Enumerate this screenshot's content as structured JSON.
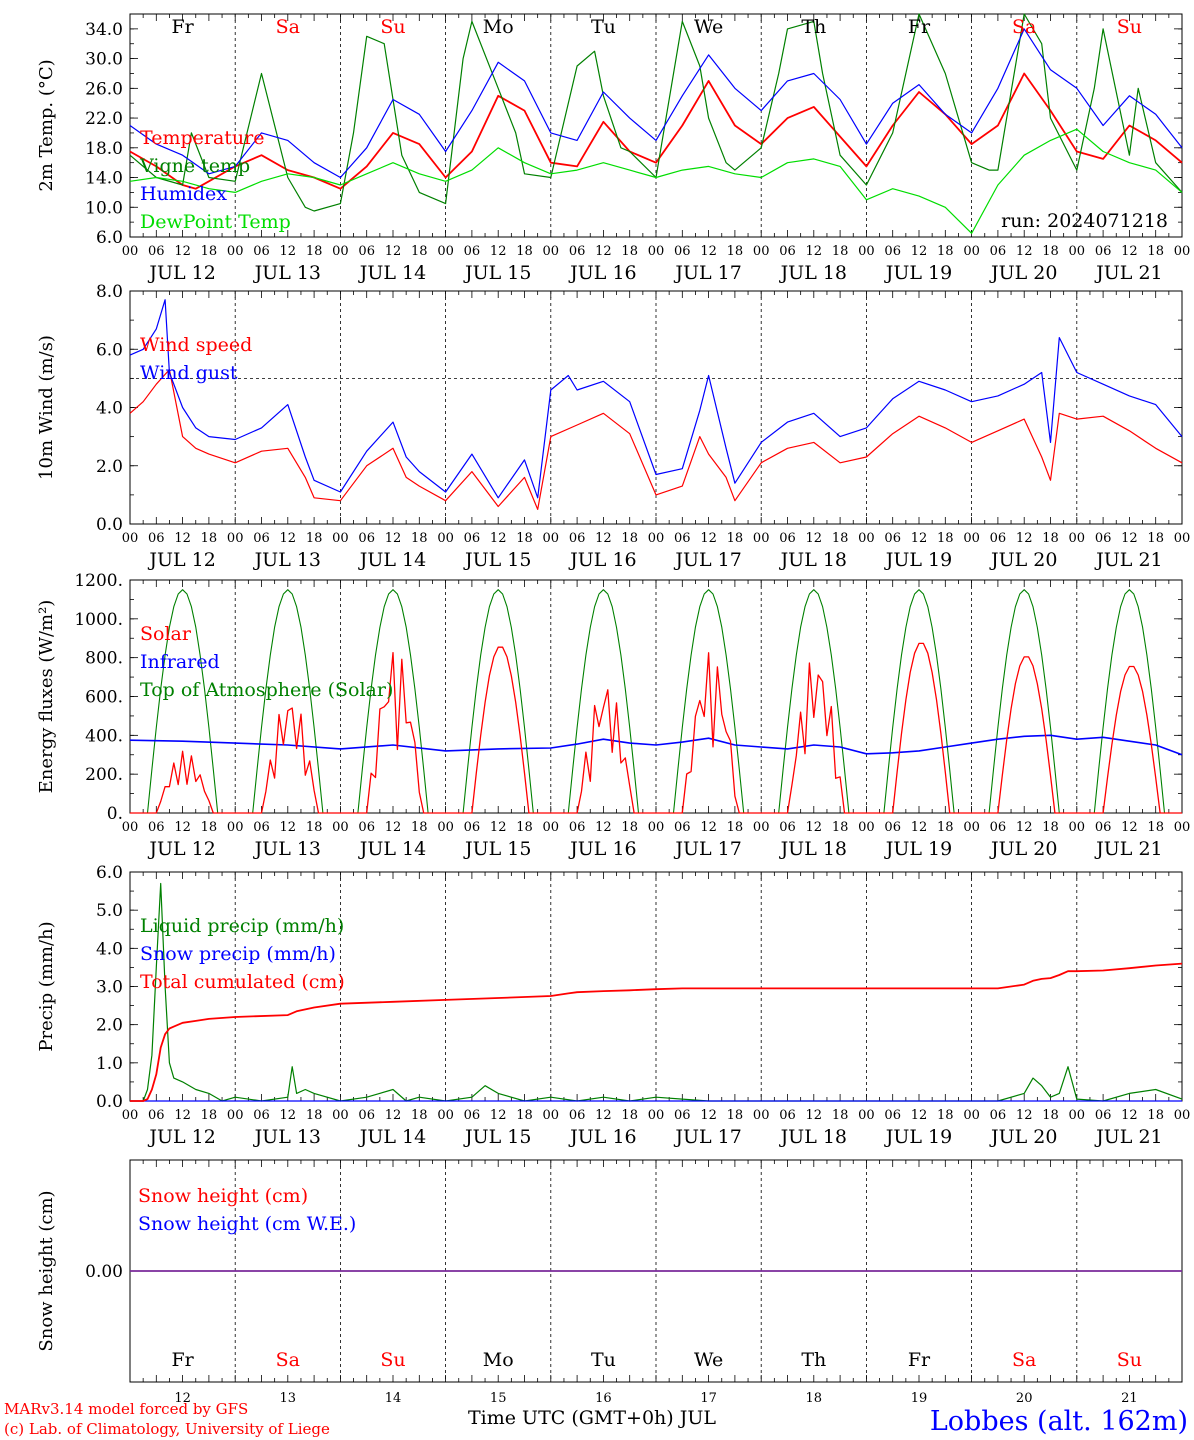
{
  "colors": {
    "temperature": "#ff0000",
    "vigne": "#008000",
    "humidex": "#0000ff",
    "dewpoint": "#00dd00",
    "wind_speed": "#ff0000",
    "wind_gust": "#0000ff",
    "solar": "#ff0000",
    "infrared": "#0000ff",
    "toa": "#008000",
    "liquid": "#008000",
    "snow_precip": "#0000ff",
    "cumulated": "#ff0000",
    "snow_height": "#ff0000",
    "snow_we": "#0000ff",
    "weekend": "#ff0000",
    "weekday": "#000000",
    "station": "#0000ff",
    "credits": "#ff0000"
  },
  "days": {
    "names": [
      "Fr",
      "Sa",
      "Su",
      "Mo",
      "Tu",
      "We",
      "Th",
      "Fr",
      "Sa",
      "Su"
    ],
    "weekend": [
      false,
      true,
      true,
      false,
      false,
      false,
      false,
      false,
      true,
      true
    ],
    "dates": [
      "JUL 12",
      "JUL 13",
      "JUL 14",
      "JUL 15",
      "JUL 16",
      "JUL 17",
      "JUL 18",
      "JUL 19",
      "JUL 20",
      "JUL 21"
    ],
    "numbers": [
      "12",
      "13",
      "14",
      "15",
      "16",
      "17",
      "18",
      "19",
      "20",
      "21"
    ],
    "hours": [
      "00",
      "06",
      "12",
      "18"
    ]
  },
  "run_label": "run: 2024071218",
  "footer": {
    "credit_1": "MARv3.14 model forced by GFS",
    "credit_2": "(c) Lab. of Climatology, University of Liege",
    "axis_title": "Time UTC (GMT+0h) JUL",
    "station": "Lobbes (alt. 162m)"
  },
  "chart_data": [
    {
      "type": "line",
      "ylabel": "2m Temp. (°C)",
      "ylim": [
        6,
        36
      ],
      "yticks": [
        "6.0",
        "10.0",
        "14.0",
        "18.0",
        "22.0",
        "26.0",
        "30.0",
        "34.0"
      ],
      "x_unit": "hours since JUL 12 00 UTC",
      "xlim": [
        0,
        240
      ],
      "legend": [
        "Temperature",
        "Vigne temp",
        "Humidex",
        "DewPoint Temp"
      ],
      "series": [
        {
          "name": "Temperature",
          "color_key": "temperature",
          "x": [
            0,
            6,
            12,
            15,
            18,
            24,
            30,
            36,
            42,
            48,
            54,
            60,
            66,
            72,
            78,
            84,
            90,
            96,
            102,
            108,
            114,
            120,
            126,
            132,
            138,
            144,
            150,
            156,
            162,
            168,
            174,
            180,
            186,
            192,
            198,
            204,
            210,
            216,
            222,
            228,
            234,
            240
          ],
          "y": [
            17.5,
            15.5,
            13,
            12.5,
            13.5,
            15.5,
            17,
            15,
            14,
            12.5,
            15.5,
            20,
            18.5,
            14,
            17.5,
            25,
            23,
            16,
            15.5,
            21.5,
            17.5,
            16,
            21,
            27,
            21,
            18.5,
            22,
            23.5,
            19.5,
            15.5,
            21,
            25.5,
            22.5,
            18.5,
            21,
            28,
            23,
            17.5,
            16.5,
            21,
            19,
            16
          ]
        },
        {
          "name": "Vigne temp",
          "color_key": "vigne",
          "x": [
            0,
            6,
            12,
            14,
            18,
            24,
            30,
            36,
            40,
            42,
            48,
            51,
            54,
            58,
            62,
            66,
            72,
            76,
            78,
            84,
            88,
            90,
            96,
            102,
            106,
            108,
            112,
            114,
            120,
            126,
            130,
            132,
            136,
            138,
            144,
            148,
            150,
            156,
            158,
            162,
            168,
            174,
            180,
            186,
            192,
            196,
            198,
            204,
            208,
            210,
            216,
            220,
            222,
            228,
            230,
            234,
            240
          ],
          "y": [
            17,
            14,
            13,
            20,
            14,
            13.5,
            28,
            14,
            10,
            9.5,
            10.5,
            20,
            33,
            32,
            17,
            12,
            10.5,
            30,
            35,
            26,
            20,
            14.5,
            14,
            29,
            31,
            25,
            18,
            17.5,
            14,
            35,
            29,
            22,
            16,
            15,
            18,
            28,
            34,
            35,
            28,
            17,
            13,
            20,
            36,
            28,
            16,
            15,
            15,
            36,
            32,
            22,
            15,
            26,
            34,
            17,
            26,
            16,
            12
          ]
        },
        {
          "name": "Humidex",
          "color_key": "humidex",
          "x": [
            0,
            6,
            12,
            18,
            24,
            30,
            36,
            42,
            48,
            54,
            60,
            66,
            72,
            78,
            84,
            90,
            96,
            102,
            108,
            114,
            120,
            126,
            132,
            138,
            144,
            150,
            156,
            162,
            168,
            174,
            180,
            186,
            192,
            198,
            204,
            210,
            216,
            222,
            228,
            234,
            240
          ],
          "y": [
            21,
            18.5,
            17,
            14.5,
            15.5,
            20,
            19,
            16,
            14,
            18,
            24.5,
            22.5,
            17.5,
            23,
            29.5,
            27,
            20,
            19,
            25.5,
            22,
            19,
            25,
            30.5,
            26,
            23,
            27,
            28,
            24.5,
            18.5,
            24,
            26.5,
            22.5,
            20,
            26,
            34,
            28.5,
            26,
            21,
            25,
            22.5,
            18
          ]
        },
        {
          "name": "DewPoint Temp",
          "color_key": "dewpoint",
          "x": [
            0,
            6,
            12,
            18,
            24,
            30,
            36,
            42,
            48,
            54,
            60,
            66,
            72,
            78,
            84,
            90,
            96,
            102,
            108,
            114,
            120,
            126,
            132,
            138,
            144,
            150,
            156,
            162,
            168,
            174,
            180,
            186,
            192,
            198,
            204,
            210,
            216,
            222,
            228,
            234,
            240
          ],
          "y": [
            13.5,
            14,
            13.5,
            12.5,
            12,
            13.5,
            14.5,
            14,
            13,
            14.5,
            16,
            14.5,
            13.5,
            15,
            18,
            16,
            14.5,
            15,
            16,
            15,
            14,
            15,
            15.5,
            14.5,
            14,
            16,
            16.5,
            15.5,
            11,
            12.5,
            11.5,
            10,
            6.5,
            13,
            17,
            19,
            20.5,
            17.5,
            16,
            15,
            12
          ]
        }
      ]
    },
    {
      "type": "line",
      "ylabel": "10m Wind (m/s)",
      "ylim": [
        0,
        8
      ],
      "yticks": [
        "0.0",
        "2.0",
        "4.0",
        "6.0",
        "8.0"
      ],
      "reference_line": 5,
      "xlim": [
        0,
        240
      ],
      "legend": [
        "Wind speed",
        "Wind gust"
      ],
      "series": [
        {
          "name": "Wind speed",
          "color_key": "wind_speed",
          "x": [
            0,
            3,
            6,
            9,
            12,
            15,
            18,
            24,
            30,
            36,
            40,
            42,
            48,
            54,
            60,
            63,
            66,
            72,
            78,
            84,
            90,
            93,
            96,
            102,
            108,
            114,
            120,
            126,
            130,
            132,
            136,
            138,
            144,
            150,
            156,
            162,
            168,
            174,
            180,
            186,
            192,
            198,
            204,
            208,
            210,
            212,
            216,
            222,
            228,
            234,
            240
          ],
          "y": [
            3.8,
            4.2,
            4.8,
            5.3,
            3,
            2.6,
            2.4,
            2.1,
            2.5,
            2.6,
            1.6,
            0.9,
            0.8,
            2,
            2.6,
            1.6,
            1.3,
            0.8,
            1.8,
            0.6,
            1.6,
            0.5,
            3,
            3.4,
            3.8,
            3.1,
            1,
            1.3,
            3,
            2.4,
            1.6,
            0.8,
            2.1,
            2.6,
            2.8,
            2.1,
            2.3,
            3.1,
            3.7,
            3.3,
            2.8,
            3.2,
            3.6,
            2.3,
            1.5,
            3.8,
            3.6,
            3.7,
            3.2,
            2.6,
            2.1
          ]
        },
        {
          "name": "Wind gust",
          "color_key": "wind_gust",
          "x": [
            0,
            3,
            6,
            8,
            9,
            12,
            15,
            18,
            24,
            30,
            36,
            40,
            42,
            48,
            54,
            60,
            63,
            66,
            72,
            78,
            84,
            90,
            93,
            96,
            100,
            102,
            108,
            114,
            120,
            126,
            130,
            132,
            136,
            138,
            144,
            150,
            156,
            162,
            168,
            174,
            180,
            186,
            192,
            198,
            204,
            208,
            210,
            212,
            216,
            222,
            228,
            234,
            240
          ],
          "y": [
            5.8,
            6,
            6.7,
            7.7,
            5.2,
            4,
            3.3,
            3,
            2.9,
            3.3,
            4.1,
            2.3,
            1.5,
            1.1,
            2.5,
            3.5,
            2.3,
            1.8,
            1.1,
            2.4,
            0.9,
            2.2,
            0.9,
            4.6,
            5.1,
            4.6,
            4.9,
            4.2,
            1.7,
            1.9,
            3.9,
            5.1,
            2.6,
            1.4,
            2.8,
            3.5,
            3.8,
            3,
            3.3,
            4.3,
            4.9,
            4.6,
            4.2,
            4.4,
            4.8,
            5.2,
            2.8,
            6.4,
            5.2,
            4.8,
            4.4,
            4.1,
            3
          ]
        }
      ]
    },
    {
      "type": "line",
      "ylabel": "Energy fluxes (W/m²)",
      "ylim": [
        0,
        1200
      ],
      "yticks": [
        "0.",
        "200.",
        "400.",
        "600.",
        "800.",
        "1000.",
        "1200."
      ],
      "xlim": [
        0,
        240
      ],
      "legend": [
        "Solar",
        "Infrared",
        "Top of Atmosphere (Solar)"
      ],
      "toa_daily_peak": 1150,
      "solar_daily_peak": [
        320,
        620,
        860,
        860,
        690,
        840,
        830,
        880,
        810,
        760
      ],
      "infrared_x": [
        0,
        12,
        24,
        36,
        48,
        60,
        72,
        84,
        96,
        102,
        108,
        114,
        120,
        126,
        132,
        138,
        144,
        150,
        156,
        162,
        168,
        174,
        180,
        186,
        192,
        198,
        204,
        210,
        216,
        222,
        228,
        234,
        240
      ],
      "infrared_y": [
        375,
        370,
        360,
        350,
        330,
        350,
        320,
        330,
        335,
        355,
        380,
        360,
        350,
        365,
        385,
        350,
        340,
        330,
        350,
        340,
        305,
        310,
        320,
        340,
        360,
        380,
        395,
        400,
        380,
        390,
        370,
        350,
        300
      ],
      "series": [
        {
          "name": "Solar",
          "color_key": "solar"
        },
        {
          "name": "Infrared",
          "color_key": "infrared"
        },
        {
          "name": "Top of Atmosphere (Solar)",
          "color_key": "toa"
        }
      ]
    },
    {
      "type": "line",
      "ylabel": "Precip (mm/h)",
      "ylim": [
        0,
        6
      ],
      "yticks": [
        "0.0",
        "1.0",
        "2.0",
        "3.0",
        "4.0",
        "5.0",
        "6.0"
      ],
      "xlim": [
        0,
        240
      ],
      "legend": [
        "Liquid precip (mm/h)",
        "Snow precip (mm/h)",
        "Total cumulated (cm)"
      ],
      "series": [
        {
          "name": "Liquid precip (mm/h)",
          "color_key": "liquid",
          "x": [
            0,
            3,
            4,
            5,
            6,
            7,
            8,
            9,
            10,
            12,
            15,
            18,
            21,
            24,
            30,
            36,
            37,
            38,
            40,
            42,
            48,
            54,
            60,
            63,
            66,
            72,
            78,
            81,
            84,
            90,
            96,
            102,
            108,
            114,
            120,
            126,
            132,
            138,
            144,
            150,
            156,
            162,
            168,
            174,
            180,
            186,
            192,
            198,
            204,
            206,
            208,
            210,
            212,
            214,
            216,
            222,
            228,
            234,
            240
          ],
          "y": [
            0,
            0,
            0.3,
            1.2,
            3.5,
            5.7,
            3,
            1,
            0.6,
            0.5,
            0.3,
            0.2,
            0,
            0.1,
            0,
            0.1,
            0.9,
            0.2,
            0.3,
            0.2,
            0,
            0.1,
            0.3,
            0,
            0.1,
            0,
            0.1,
            0.4,
            0.2,
            0,
            0.1,
            0,
            0.1,
            0,
            0.1,
            0.05,
            0,
            0,
            0,
            0,
            0,
            0,
            0,
            0,
            0,
            0,
            0,
            0,
            0.2,
            0.6,
            0.4,
            0.1,
            0.2,
            0.9,
            0.05,
            0,
            0.2,
            0.3,
            0.05
          ]
        },
        {
          "name": "Snow precip (mm/h)",
          "color_key": "snow_precip",
          "x": [
            0,
            240
          ],
          "y": [
            0,
            0
          ]
        },
        {
          "name": "Total cumulated (cm)",
          "color_key": "cumulated",
          "x": [
            0,
            3,
            4,
            5,
            6,
            7,
            8,
            9,
            10,
            12,
            15,
            18,
            24,
            36,
            38,
            42,
            48,
            60,
            72,
            84,
            96,
            100,
            102,
            108,
            114,
            120,
            126,
            132,
            144,
            156,
            168,
            180,
            192,
            198,
            204,
            206,
            208,
            210,
            212,
            214,
            216,
            222,
            228,
            234,
            240
          ],
          "y": [
            0,
            0,
            0.05,
            0.3,
            0.7,
            1.4,
            1.75,
            1.9,
            1.95,
            2.05,
            2.1,
            2.15,
            2.2,
            2.25,
            2.35,
            2.45,
            2.55,
            2.6,
            2.65,
            2.7,
            2.75,
            2.82,
            2.85,
            2.88,
            2.9,
            2.93,
            2.95,
            2.95,
            2.95,
            2.95,
            2.95,
            2.95,
            2.95,
            2.95,
            3.05,
            3.15,
            3.2,
            3.22,
            3.3,
            3.4,
            3.4,
            3.42,
            3.48,
            3.55,
            3.6
          ]
        }
      ]
    },
    {
      "type": "line",
      "ylabel": "Snow height (cm)",
      "yticks": [
        "0.00"
      ],
      "xlim": [
        0,
        240
      ],
      "legend": [
        "Snow height (cm)",
        "Snow height (cm W.E.)"
      ],
      "series": [
        {
          "name": "Snow height (cm)",
          "color_key": "snow_height",
          "x": [
            0,
            240
          ],
          "y": [
            0,
            0
          ]
        },
        {
          "name": "Snow height (cm W.E.)",
          "color_key": "snow_we",
          "x": [
            0,
            240
          ],
          "y": [
            0,
            0
          ]
        }
      ]
    }
  ]
}
